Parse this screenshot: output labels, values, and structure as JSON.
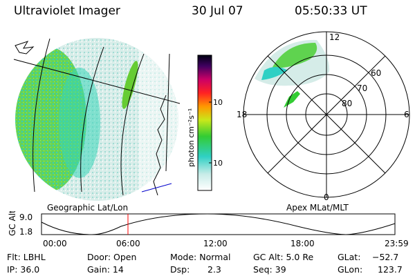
{
  "header": {
    "instrument": "Ultraviolet Imager",
    "date": "30 Jul 07",
    "time": "05:50:33 UT"
  },
  "left_panel": {
    "caption": "Geographic Lat/Lon"
  },
  "right_panel": {
    "caption": "Apex MLat/MLT",
    "mlt_labels": {
      "top": "12",
      "left": "18",
      "right": "6",
      "bottom": "0"
    },
    "mlat_labels": [
      "60",
      "70",
      "80"
    ]
  },
  "colorbar": {
    "label": "photon cm⁻²s⁻¹",
    "ticks": [
      "100",
      "10"
    ]
  },
  "altitude_plot": {
    "ylabel": "GC Alt",
    "y_ticks": [
      "9.0",
      "1.8"
    ],
    "x_ticks": [
      "00:00",
      "06:00",
      "12:00",
      "18:00",
      "23:59"
    ],
    "current_time_marker": "05:50"
  },
  "footer": {
    "flt": "Flt: LBHL",
    "ip": "IP: 36.0",
    "door": "Door: Open",
    "gain": "Gain: 14",
    "mode": "Mode: Normal",
    "dsp_label": "Dsp:",
    "dsp_value": "2.3",
    "gc_alt": "GC Alt: 5.0 Re",
    "seq": "Seq: 39",
    "glat_label": "GLat:",
    "glat_value": "−52.7",
    "glon_label": "GLon:",
    "glon_value": "123.7"
  },
  "colors": {
    "aurora_green": "#33cc33",
    "aurora_cyan": "#00d0c0",
    "background_haze": "#cde8e4",
    "marker_red": "#ff0000",
    "coast_blue": "#0000cc"
  }
}
